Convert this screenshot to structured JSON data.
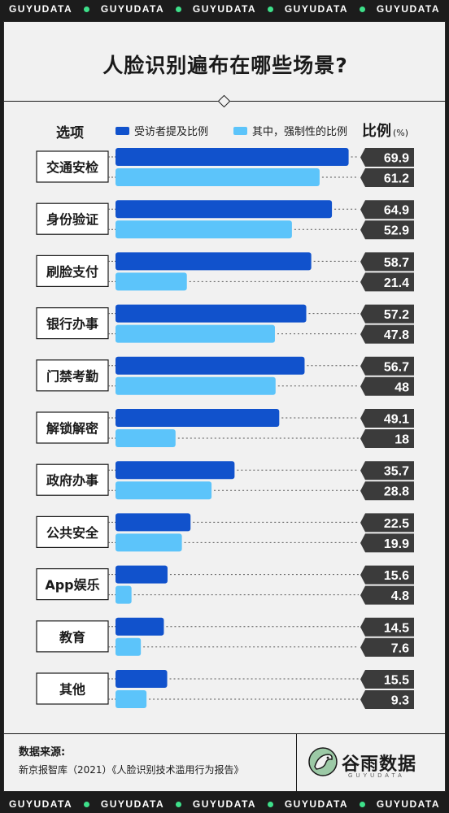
{
  "ticker": {
    "text": "GUYUDATA",
    "accent": "#3ee08a"
  },
  "title": "人脸识别遍布在哪些场景?",
  "legend": {
    "option_label": "选项",
    "series1_label": "受访者提及比例",
    "series2_label": "其中，强制性的比例",
    "ratio_label": "比例",
    "unit": "(%)"
  },
  "colors": {
    "series1": "#1152cc",
    "series2": "#5cc4fa",
    "value_box": "#3b3b3b",
    "background": "#f1f1f1"
  },
  "chart_data": {
    "type": "bar",
    "orientation": "horizontal",
    "categories": [
      "交通安检",
      "身份验证",
      "刷脸支付",
      "银行办事",
      "门禁考勤",
      "解锁解密",
      "政府办事",
      "公共安全",
      "App娱乐",
      "教育",
      "其他"
    ],
    "series": [
      {
        "name": "受访者提及比例",
        "values": [
          69.9,
          64.9,
          58.7,
          57.2,
          56.7,
          49.1,
          35.7,
          22.5,
          15.6,
          14.5,
          15.5
        ]
      },
      {
        "name": "其中，强制性的比例",
        "values": [
          61.2,
          52.9,
          21.4,
          47.8,
          48,
          18,
          28.8,
          19.9,
          4.8,
          7.6,
          9.3
        ]
      }
    ],
    "xlim": [
      0,
      70
    ],
    "ylabel": "比例",
    "unit": "%",
    "grid": false,
    "legend": "top"
  },
  "footer": {
    "source_label": "数据来源:",
    "source_text": "新京报智库（2021）《人脸识别技术滥用行为报告》",
    "brand_name": "谷雨数据",
    "brand_sub": "GUYUDATA"
  }
}
